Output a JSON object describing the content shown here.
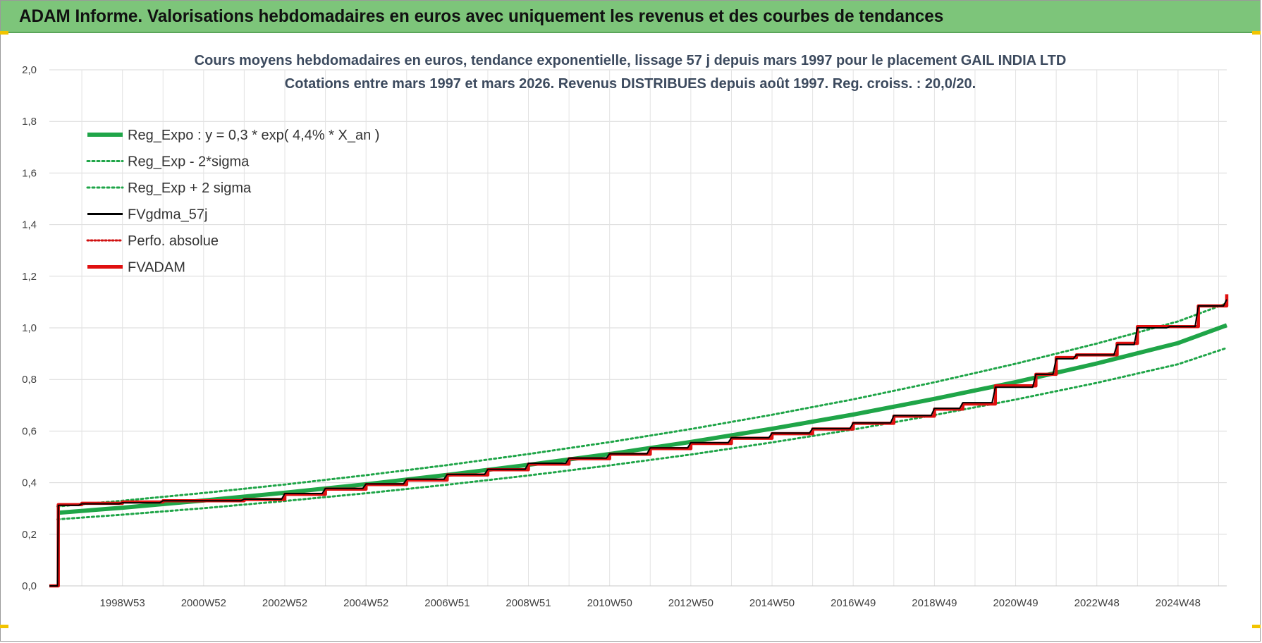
{
  "banner": {
    "title": "ADAM Informe. Valorisations hebdomadaires en euros avec uniquement les revenus et des courbes de tendances"
  },
  "chart_data": {
    "type": "line",
    "title_lines": [
      "Cours moyens hebdomadaires en euros, tendance exponentielle, lissage 57 j depuis mars 1997 pour le placement GAIL INDIA LTD",
      "Cotations entre mars 1997 et mars 2026. Revenus DISTRIBUES depuis août 1997. Reg. croiss. : 20,0/20."
    ],
    "xlabel": "",
    "ylabel": "",
    "x_range": [
      1997.2,
      2026.2
    ],
    "ylim": [
      0,
      2.0
    ],
    "y_ticks": [
      "0,0",
      "0,2",
      "0,4",
      "0,6",
      "0,8",
      "1,0",
      "1,2",
      "1,4",
      "1,6",
      "1,8",
      "2,0"
    ],
    "x_ticks": [
      {
        "label": "1998W53",
        "x": 1999.0
      },
      {
        "label": "2000W52",
        "x": 2001.0
      },
      {
        "label": "2002W52",
        "x": 2003.0
      },
      {
        "label": "2004W52",
        "x": 2005.0
      },
      {
        "label": "2006W51",
        "x": 2007.0
      },
      {
        "label": "2008W51",
        "x": 2009.0
      },
      {
        "label": "2010W50",
        "x": 2011.0
      },
      {
        "label": "2012W50",
        "x": 2013.0
      },
      {
        "label": "2014W50",
        "x": 2015.0
      },
      {
        "label": "2016W49",
        "x": 2017.0
      },
      {
        "label": "2018W49",
        "x": 2019.0
      },
      {
        "label": "2020W49",
        "x": 2021.0
      },
      {
        "label": "2022W48",
        "x": 2023.0
      },
      {
        "label": "2024W48",
        "x": 2025.0
      }
    ],
    "grid": true,
    "legend_position": "top-left",
    "series": [
      {
        "name": "Reg_Expo : y = 0,3 * exp( 4,4% *  X_an )",
        "color": "#1fa548",
        "style": "thick-solid",
        "x": [
          1997.4,
          1999,
          2001,
          2003,
          2005,
          2007,
          2009,
          2011,
          2013,
          2015,
          2017,
          2019,
          2021,
          2023,
          2025,
          2026.2
        ],
        "y": [
          0.283,
          0.303,
          0.331,
          0.361,
          0.394,
          0.43,
          0.469,
          0.511,
          0.558,
          0.609,
          0.664,
          0.725,
          0.79,
          0.862,
          0.941,
          1.01
        ]
      },
      {
        "name": "Reg_Exp - 2*sigma",
        "color": "#1fa548",
        "style": "dotted",
        "x": [
          1997.4,
          1999,
          2001,
          2003,
          2005,
          2007,
          2009,
          2011,
          2013,
          2015,
          2017,
          2019,
          2021,
          2023,
          2025,
          2026.2
        ],
        "y": [
          0.258,
          0.276,
          0.301,
          0.329,
          0.359,
          0.392,
          0.428,
          0.467,
          0.509,
          0.556,
          0.606,
          0.662,
          0.722,
          0.787,
          0.859,
          0.922
        ]
      },
      {
        "name": "Reg_Exp + 2 sigma",
        "color": "#1fa548",
        "style": "dotted",
        "x": [
          1997.4,
          1999,
          2001,
          2003,
          2005,
          2007,
          2009,
          2011,
          2013,
          2015,
          2017,
          2019,
          2021,
          2023,
          2025,
          2026.2
        ],
        "y": [
          0.308,
          0.33,
          0.36,
          0.393,
          0.429,
          0.468,
          0.511,
          0.557,
          0.608,
          0.663,
          0.723,
          0.789,
          0.861,
          0.939,
          1.025,
          1.095
        ]
      },
      {
        "name": "FVgdma_57j",
        "color": "#000000",
        "style": "solid",
        "x": [
          1997.2,
          1997.4,
          1997.42,
          1998.0,
          1999.0,
          2000.0,
          2001.0,
          2002.0,
          2003.0,
          2004.0,
          2005.0,
          2006.0,
          2007.0,
          2008.0,
          2009.0,
          2010.0,
          2011.0,
          2012.0,
          2013.0,
          2014.0,
          2015.0,
          2016.0,
          2017.0,
          2018.0,
          2019.0,
          2019.7,
          2020.5,
          2021.5,
          2022.0,
          2022.5,
          2023.5,
          2024.0,
          2024.8,
          2025.5,
          2026.2
        ],
        "y": [
          0.0,
          0.0,
          0.312,
          0.318,
          0.322,
          0.33,
          0.33,
          0.336,
          0.358,
          0.378,
          0.395,
          0.413,
          0.432,
          0.452,
          0.475,
          0.495,
          0.512,
          0.535,
          0.555,
          0.574,
          0.592,
          0.61,
          0.632,
          0.66,
          0.688,
          0.71,
          0.77,
          0.82,
          0.88,
          0.895,
          0.935,
          1.0,
          1.005,
          1.085,
          1.11
        ]
      },
      {
        "name": "Perfo. absolue",
        "color": "#d01010",
        "style": "dotted",
        "x": [],
        "y": []
      },
      {
        "name": "FVADAM",
        "color": "#e01010",
        "style": "thick-step",
        "x": [
          1997.2,
          1997.4,
          1997.42,
          1998.0,
          1999.0,
          2000.0,
          2001.0,
          2002.0,
          2003.0,
          2004.0,
          2005.0,
          2006.0,
          2007.0,
          2008.0,
          2009.0,
          2010.0,
          2011.0,
          2012.0,
          2013.0,
          2014.0,
          2015.0,
          2016.0,
          2017.0,
          2018.0,
          2019.0,
          2019.7,
          2020.5,
          2021.5,
          2022.0,
          2022.5,
          2023.5,
          2024.0,
          2024.8,
          2025.5,
          2026.2
        ],
        "y": [
          0.0,
          0.0,
          0.315,
          0.32,
          0.325,
          0.33,
          0.33,
          0.335,
          0.355,
          0.375,
          0.393,
          0.41,
          0.43,
          0.45,
          0.472,
          0.493,
          0.51,
          0.532,
          0.552,
          0.572,
          0.59,
          0.608,
          0.63,
          0.658,
          0.685,
          0.705,
          0.775,
          0.82,
          0.885,
          0.895,
          0.94,
          1.005,
          1.005,
          1.085,
          1.13
        ]
      }
    ]
  }
}
